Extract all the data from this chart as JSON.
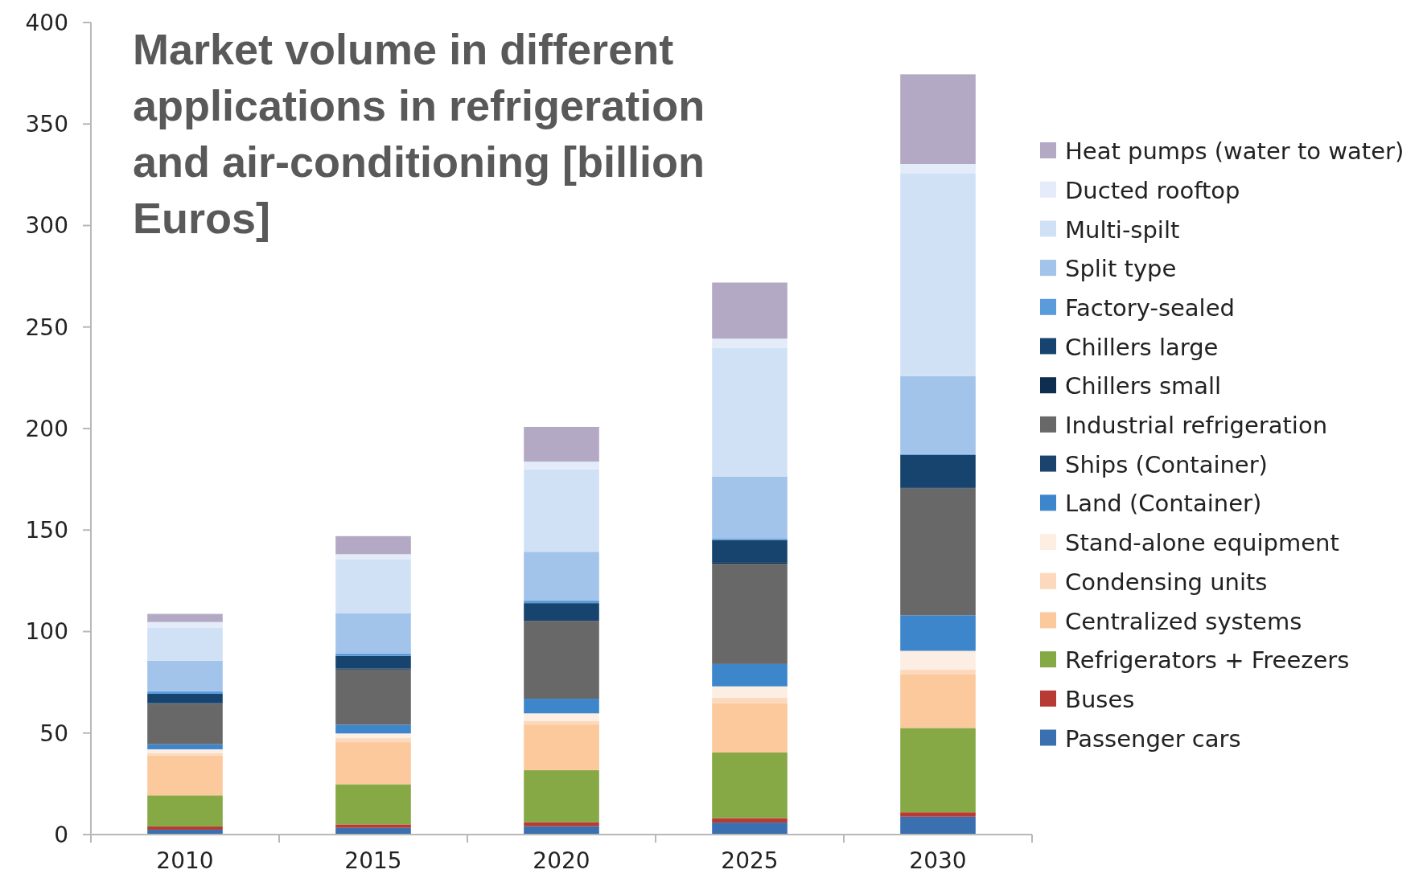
{
  "chart_data": {
    "type": "bar",
    "stacked": true,
    "title": "Market volume in different applications in refrigeration and air-conditioning [billion Euros]",
    "categories": [
      "2010",
      "2015",
      "2020",
      "2025",
      "2030"
    ],
    "ylim": [
      0,
      400
    ],
    "yticks": [
      0,
      50,
      100,
      150,
      200,
      250,
      300,
      350,
      400
    ],
    "grid": false,
    "legend": "right",
    "series": [
      {
        "name": "Passenger cars",
        "color": "#3a6fb0",
        "values": [
          2.4,
          3.3,
          4.1,
          5.9,
          8.8
        ]
      },
      {
        "name": "Buses",
        "color": "#b83a34",
        "values": [
          1.6,
          1.7,
          1.9,
          2.2,
          2.2
        ]
      },
      {
        "name": "Refrigerators + Freezers",
        "color": "#86a845",
        "values": [
          15.3,
          19.8,
          25.7,
          32.3,
          41.5
        ]
      },
      {
        "name": "Centralized systems",
        "color": "#fbc99c",
        "values": [
          19.6,
          20.7,
          22.5,
          24.2,
          26.3
        ]
      },
      {
        "name": "Condensing units",
        "color": "#fcd9bc",
        "values": [
          1.1,
          2,
          1.8,
          2.7,
          2.4
        ]
      },
      {
        "name": "Stand-alone equipment",
        "color": "#fdeee3",
        "values": [
          2,
          2.3,
          3.7,
          5.7,
          9.3
        ]
      },
      {
        "name": "Land (Container)",
        "color": "#3e86cc",
        "values": [
          2.5,
          4.3,
          7.2,
          11,
          17.5
        ]
      },
      {
        "name": "Ships (Container)",
        "color": "#1a436e",
        "values": [
          null,
          null,
          null,
          null,
          null
        ]
      },
      {
        "name": "Industrial refrigeration",
        "color": "#686868",
        "values": [
          19.9,
          27.2,
          38.3,
          49.4,
          62.5
        ]
      },
      {
        "name": "Chillers small",
        "color": "#0f2d4e",
        "values": [
          0.4,
          0.4,
          0.5,
          0.5,
          0.5
        ]
      },
      {
        "name": "Chillers large",
        "color": "#17446f",
        "values": [
          4.5,
          6.4,
          8.3,
          11.1,
          16
        ]
      },
      {
        "name": "Factory-sealed",
        "color": "#5a9bdb",
        "values": [
          1.3,
          1.1,
          1.4,
          0.7,
          0.5
        ]
      },
      {
        "name": "Split type",
        "color": "#a2c3ea",
        "values": [
          15.1,
          19.9,
          23.9,
          30.7,
          38.3
        ]
      },
      {
        "name": "Multi-spilt",
        "color": "#d1e1f5",
        "values": [
          16.3,
          26.6,
          40.6,
          63.3,
          100
        ]
      },
      {
        "name": "Ducted rooftop",
        "color": "#e3ecf8",
        "values": [
          2.7,
          2.4,
          3.8,
          4.6,
          4.5
        ]
      },
      {
        "name": "Heat pumps (water to water)",
        "color": "#b4a9c4",
        "values": [
          4,
          8.9,
          17.1,
          27.6,
          44.2
        ]
      }
    ]
  }
}
